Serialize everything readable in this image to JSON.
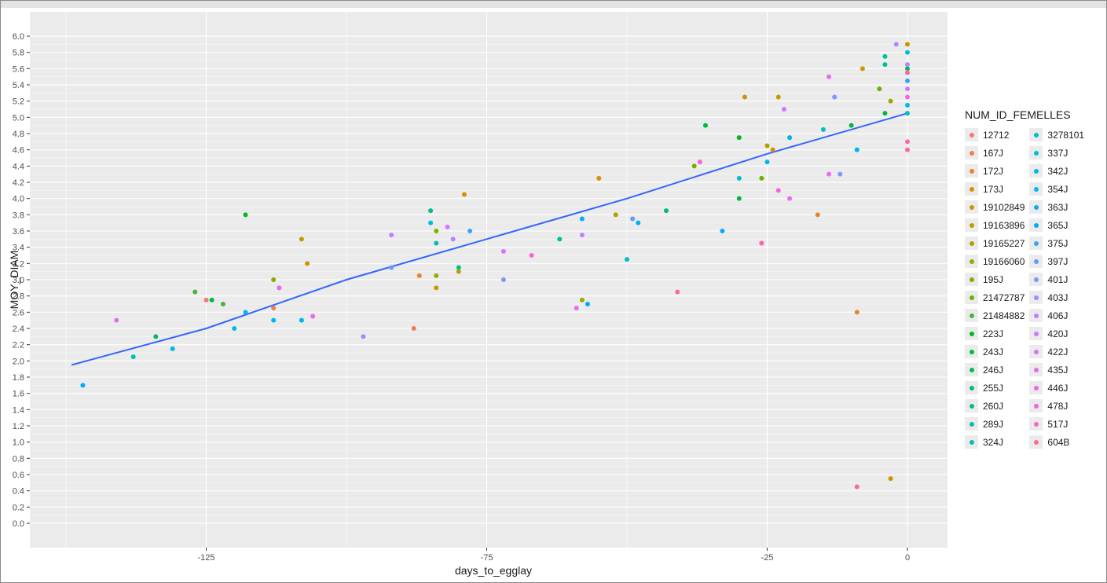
{
  "chart_data": {
    "type": "scatter",
    "title": "",
    "xlabel": "days_to_egglay",
    "ylabel": "MOY_DIAM",
    "xlim": [
      -142,
      7
    ],
    "ylim": [
      -0.3,
      6.2
    ],
    "x_ticks": [
      -125,
      -75,
      -25,
      0
    ],
    "y_ticks": [
      0.0,
      0.2,
      0.4,
      0.6,
      0.8,
      1.0,
      1.2,
      1.4,
      1.6,
      1.8,
      2.0,
      2.2,
      2.4,
      2.6,
      2.8,
      3.0,
      3.2,
      3.4,
      3.6,
      3.8,
      4.0,
      4.2,
      4.4,
      4.6,
      4.8,
      5.0,
      5.2,
      5.4,
      5.6,
      5.8,
      6.0
    ],
    "grid": true,
    "panel_background": "#ebebeb",
    "legend_position": "right",
    "legend_title": "NUM_ID_FEMELLES",
    "series": [
      {
        "name": "12712",
        "color": "#F8766D",
        "points": [
          [
            -125,
            2.75
          ]
        ]
      },
      {
        "name": "167J",
        "color": "#F17D50",
        "points": [
          [
            -113,
            2.65
          ],
          [
            -88,
            2.4
          ]
        ]
      },
      {
        "name": "172J",
        "color": "#E8852E",
        "points": [
          [
            -87,
            3.05
          ],
          [
            -9,
            2.6
          ],
          [
            -16,
            3.8
          ]
        ]
      },
      {
        "name": "173J",
        "color": "#DC8D00",
        "points": [
          [
            -79,
            4.05
          ],
          [
            -24,
            4.6
          ]
        ]
      },
      {
        "name": "19102849",
        "color": "#CF9400",
        "points": [
          [
            -107,
            3.2
          ],
          [
            -55,
            4.25
          ],
          [
            -29,
            5.25
          ],
          [
            -23,
            5.25
          ],
          [
            0,
            5.9
          ],
          [
            -3,
            0.55
          ],
          [
            -8,
            5.6
          ]
        ]
      },
      {
        "name": "19163896",
        "color": "#C09B00",
        "points": [
          [
            -108,
            3.5
          ],
          [
            -80,
            3.1
          ],
          [
            -84,
            2.9
          ]
        ]
      },
      {
        "name": "19165227",
        "color": "#AFA100",
        "points": [
          [
            -52,
            3.8
          ],
          [
            -25,
            4.65
          ]
        ]
      },
      {
        "name": "19166060",
        "color": "#9CA700",
        "points": [
          [
            -84,
            3.05
          ],
          [
            -58,
            2.75
          ],
          [
            -3,
            5.2
          ]
        ]
      },
      {
        "name": "195J",
        "color": "#86AC00",
        "points": [
          [
            -113,
            3.0
          ],
          [
            -84,
            3.6
          ]
        ]
      },
      {
        "name": "21472787",
        "color": "#6BB100",
        "points": [
          [
            -38,
            4.4
          ],
          [
            -26,
            4.25
          ],
          [
            -5,
            5.35
          ]
        ]
      },
      {
        "name": "21484882",
        "color": "#42B540",
        "points": [
          [
            -127,
            2.85
          ],
          [
            -122,
            2.7
          ]
        ]
      },
      {
        "name": "223J",
        "color": "#00B81F",
        "points": [
          [
            -118,
            3.8
          ],
          [
            -30,
            4.75
          ]
        ]
      },
      {
        "name": "243J",
        "color": "#00BA42",
        "points": [
          [
            -124,
            2.75
          ],
          [
            -36,
            4.9
          ],
          [
            -30,
            4.0
          ],
          [
            -4,
            5.05
          ],
          [
            -10,
            4.9
          ]
        ]
      },
      {
        "name": "246J",
        "color": "#00BC5C",
        "points": [
          [
            -134,
            2.3
          ],
          [
            0,
            5.6
          ]
        ]
      },
      {
        "name": "255J",
        "color": "#00BD74",
        "points": [
          [
            -43,
            3.85
          ]
        ]
      },
      {
        "name": "260J",
        "color": "#00BE8B",
        "points": [
          [
            -85,
            3.85
          ],
          [
            -80,
            3.15
          ]
        ]
      },
      {
        "name": "289J",
        "color": "#00BFA0",
        "points": [
          [
            -62,
            3.5
          ],
          [
            -4,
            5.75
          ],
          [
            -4,
            5.65
          ]
        ]
      },
      {
        "name": "324J",
        "color": "#00BFB4",
        "points": [
          [
            -138,
            2.05
          ],
          [
            -84,
            3.45
          ]
        ]
      },
      {
        "name": "3278101",
        "color": "#00BEC7",
        "points": [
          [
            -15,
            4.85
          ],
          [
            0,
            5.05
          ]
        ]
      },
      {
        "name": "337J",
        "color": "#00BCD8",
        "points": [
          [
            -85,
            3.7
          ],
          [
            -50,
            3.25
          ],
          [
            -30,
            4.25
          ],
          [
            0,
            5.8
          ]
        ]
      },
      {
        "name": "342J",
        "color": "#00B9E8",
        "points": [
          [
            -120,
            2.4
          ],
          [
            -131,
            2.15
          ],
          [
            -25,
            4.45
          ],
          [
            0,
            5.15
          ]
        ]
      },
      {
        "name": "354J",
        "color": "#00B5F5",
        "points": [
          [
            -113,
            2.5
          ],
          [
            -118,
            2.6
          ]
        ]
      },
      {
        "name": "363J",
        "color": "#00B0F6",
        "points": [
          [
            -108,
            2.5
          ],
          [
            -58,
            3.75
          ],
          [
            -48,
            3.7
          ],
          [
            -33,
            3.6
          ],
          [
            -21,
            4.75
          ],
          [
            -9,
            4.6
          ]
        ]
      },
      {
        "name": "365J",
        "color": "#00AAFE",
        "points": [
          [
            -147,
            1.7
          ],
          [
            -57,
            2.7
          ]
        ]
      },
      {
        "name": "375J",
        "color": "#37A3FF",
        "points": [
          [
            -78,
            3.6
          ],
          [
            0,
            5.45
          ]
        ]
      },
      {
        "name": "397J",
        "color": "#619CFF",
        "points": [
          [
            -92,
            3.15
          ],
          [
            -49,
            3.75
          ]
        ]
      },
      {
        "name": "401J",
        "color": "#8295FF",
        "points": [
          [
            -72,
            3.0
          ],
          [
            -13,
            5.25
          ],
          [
            -12,
            4.3
          ]
        ]
      },
      {
        "name": "403J",
        "color": "#9D8EFF",
        "points": [
          [
            -97,
            2.3
          ]
        ]
      },
      {
        "name": "406J",
        "color": "#B385FF",
        "points": [
          [
            -81,
            3.5
          ],
          [
            -2,
            5.9
          ],
          [
            0,
            5.65
          ]
        ]
      },
      {
        "name": "420J",
        "color": "#C77CFF",
        "points": [
          [
            -92,
            3.55
          ],
          [
            -112,
            2.9
          ],
          [
            -58,
            3.55
          ],
          [
            -22,
            5.1
          ]
        ]
      },
      {
        "name": "422J",
        "color": "#D774FD",
        "points": [
          [
            -82,
            3.65
          ],
          [
            -72,
            3.35
          ],
          [
            0,
            5.35
          ]
        ]
      },
      {
        "name": "435J",
        "color": "#E56CF3",
        "points": [
          [
            -141,
            2.5
          ],
          [
            -112,
            2.9
          ],
          [
            -59,
            2.65
          ],
          [
            -21,
            4.0
          ],
          [
            -14,
            4.3
          ],
          [
            -14,
            5.5
          ]
        ]
      },
      {
        "name": "446J",
        "color": "#F066E8",
        "points": [
          [
            -106,
            2.55
          ],
          [
            0,
            5.25
          ]
        ]
      },
      {
        "name": "478J",
        "color": "#F763DA",
        "points": [
          [
            -37,
            4.45
          ],
          [
            -23,
            4.1
          ]
        ]
      },
      {
        "name": "517J",
        "color": "#FD61D1",
        "points": [
          [
            -67,
            3.3
          ],
          [
            -26,
            3.45
          ]
        ]
      },
      {
        "name": "604B",
        "color": "#FF65AC",
        "points": [
          [
            -41,
            2.85
          ],
          [
            -26,
            3.45
          ],
          [
            -9,
            0.45
          ],
          [
            0,
            4.7
          ],
          [
            0,
            4.6
          ],
          [
            0,
            5.55
          ]
        ]
      }
    ],
    "trend_line": {
      "color": "#3366FF",
      "points": [
        [
          -149,
          1.95
        ],
        [
          -125,
          2.4
        ],
        [
          -100,
          3.0
        ],
        [
          -75,
          3.5
        ],
        [
          -50,
          4.0
        ],
        [
          -25,
          4.55
        ],
        [
          0,
          5.05
        ]
      ]
    }
  }
}
